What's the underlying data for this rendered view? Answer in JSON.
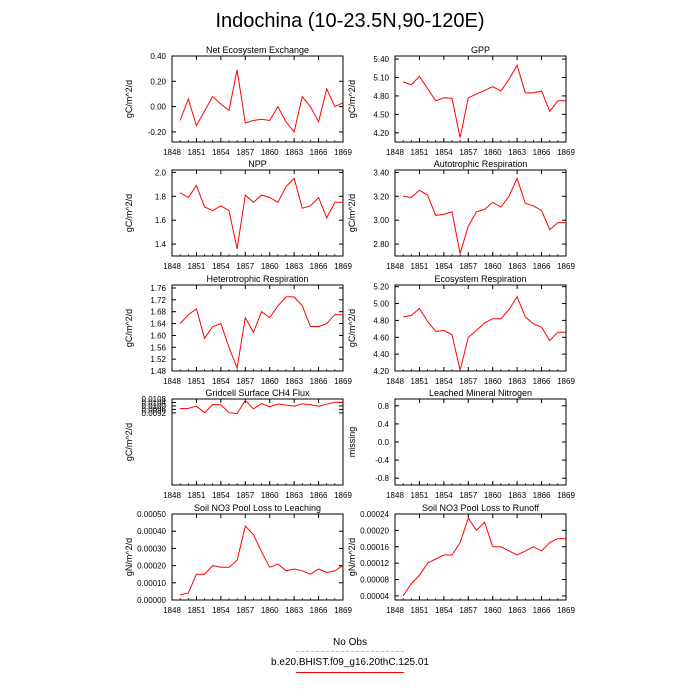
{
  "title": "Indochina (10-23.5N,90-120E)",
  "legend": [
    {
      "label": "No Obs",
      "color": "#b6b6f0",
      "dash": "4,3"
    },
    {
      "label": "b.e20.BHIST.f09_g16.20thC.125.01",
      "color": "#ff0000",
      "dash": ""
    }
  ],
  "x_ticks": [
    "1848",
    "1851",
    "1854",
    "1857",
    "1860",
    "1863",
    "1866",
    "1869"
  ],
  "chart_data": [
    {
      "type": "line",
      "title": "Net Ecosystem Exchange",
      "ylabel": "gC/m^2/d",
      "ylim": [
        -0.28,
        0.4
      ],
      "yticks": [
        "0.40",
        "0.20",
        "0.00",
        "-0.20"
      ],
      "ytick_values": [
        0.4,
        0.2,
        0.0,
        -0.2
      ],
      "xlim": [
        1848,
        1869
      ],
      "x": [
        1849,
        1850,
        1851,
        1853,
        1854,
        1855,
        1856,
        1857,
        1858,
        1859,
        1860,
        1861,
        1862,
        1863,
        1864,
        1865,
        1866,
        1867,
        1868,
        1869
      ],
      "values": [
        -0.11,
        0.06,
        -0.15,
        0.08,
        0.02,
        -0.03,
        0.29,
        -0.13,
        -0.11,
        -0.1,
        -0.11,
        0.0,
        -0.12,
        -0.2,
        0.08,
        0.0,
        -0.12,
        0.14,
        0.0,
        0.03
      ]
    },
    {
      "type": "line",
      "title": "GPP",
      "ylabel": "gC/m^2/d",
      "ylim": [
        4.05,
        5.45
      ],
      "yticks": [
        "5.40",
        "5.10",
        "4.80",
        "4.50",
        "4.20"
      ],
      "ytick_values": [
        5.4,
        5.1,
        4.8,
        4.5,
        4.2
      ],
      "xlim": [
        1848,
        1869
      ],
      "x": [
        1849,
        1850,
        1851,
        1853,
        1854,
        1855,
        1856,
        1857,
        1858,
        1859,
        1860,
        1861,
        1862,
        1863,
        1864,
        1865,
        1866,
        1867,
        1868,
        1869
      ],
      "values": [
        5.03,
        4.98,
        5.12,
        4.72,
        4.77,
        4.76,
        4.12,
        4.77,
        4.83,
        4.89,
        4.95,
        4.88,
        5.07,
        5.3,
        4.85,
        4.85,
        4.88,
        4.55,
        4.72,
        4.72
      ]
    },
    {
      "type": "line",
      "title": "NPP",
      "ylabel": "gC/m^2/d",
      "ylim": [
        1.3,
        2.02
      ],
      "yticks": [
        "2.0",
        "1.8",
        "1.6",
        "1.4"
      ],
      "ytick_values": [
        2.0,
        1.8,
        1.6,
        1.4
      ],
      "xlim": [
        1848,
        1869
      ],
      "x": [
        1849,
        1850,
        1851,
        1852,
        1853,
        1854,
        1855,
        1856,
        1857,
        1858,
        1859,
        1860,
        1861,
        1862,
        1863,
        1864,
        1865,
        1866,
        1867,
        1868,
        1869
      ],
      "values": [
        1.83,
        1.79,
        1.89,
        1.71,
        1.68,
        1.72,
        1.68,
        1.36,
        1.81,
        1.75,
        1.81,
        1.79,
        1.75,
        1.88,
        1.95,
        1.7,
        1.72,
        1.79,
        1.62,
        1.75,
        1.75
      ]
    },
    {
      "type": "line",
      "title": "Autotrophic Respiration",
      "ylabel": "gC/m^2/d",
      "ylim": [
        2.7,
        3.42
      ],
      "yticks": [
        "3.40",
        "3.20",
        "3.00",
        "2.80"
      ],
      "ytick_values": [
        3.4,
        3.2,
        3.0,
        2.8
      ],
      "xlim": [
        1848,
        1869
      ],
      "x": [
        1849,
        1850,
        1851,
        1852,
        1853,
        1854,
        1855,
        1856,
        1857,
        1858,
        1859,
        1860,
        1861,
        1862,
        1863,
        1864,
        1865,
        1866,
        1867,
        1868,
        1869
      ],
      "values": [
        3.2,
        3.19,
        3.25,
        3.21,
        3.04,
        3.05,
        3.07,
        2.72,
        2.95,
        3.07,
        3.09,
        3.15,
        3.11,
        3.2,
        3.35,
        3.14,
        3.12,
        3.08,
        2.92,
        2.98,
        2.98
      ]
    },
    {
      "type": "line",
      "title": "Heterotrophic Respiration",
      "ylabel": "gC/m^2/d",
      "ylim": [
        1.48,
        1.77
      ],
      "yticks": [
        "1.76",
        "1.72",
        "1.68",
        "1.64",
        "1.60",
        "1.56",
        "1.52",
        "1.48"
      ],
      "ytick_values": [
        1.76,
        1.72,
        1.68,
        1.64,
        1.6,
        1.56,
        1.52,
        1.48
      ],
      "xlim": [
        1848,
        1869
      ],
      "x": [
        1849,
        1850,
        1851,
        1852,
        1853,
        1854,
        1855,
        1856,
        1857,
        1858,
        1859,
        1860,
        1861,
        1862,
        1863,
        1864,
        1865,
        1866,
        1867,
        1868,
        1869
      ],
      "values": [
        1.64,
        1.67,
        1.69,
        1.59,
        1.63,
        1.64,
        1.56,
        1.49,
        1.66,
        1.61,
        1.68,
        1.66,
        1.7,
        1.73,
        1.73,
        1.7,
        1.63,
        1.63,
        1.64,
        1.67,
        1.67
      ]
    },
    {
      "type": "line",
      "title": "Ecosystem Respiration",
      "ylabel": "gC/m^2/d",
      "ylim": [
        4.2,
        5.22
      ],
      "yticks": [
        "5.20",
        "5.00",
        "4.80",
        "4.60",
        "4.40",
        "4.20"
      ],
      "ytick_values": [
        5.2,
        5.0,
        4.8,
        4.6,
        4.4,
        4.2
      ],
      "xlim": [
        1848,
        1869
      ],
      "x": [
        1849,
        1850,
        1851,
        1852,
        1853,
        1854,
        1855,
        1856,
        1857,
        1858,
        1859,
        1860,
        1861,
        1862,
        1863,
        1864,
        1865,
        1866,
        1867,
        1868,
        1869
      ],
      "values": [
        4.84,
        4.86,
        4.94,
        4.79,
        4.67,
        4.68,
        4.63,
        4.21,
        4.6,
        4.68,
        4.77,
        4.82,
        4.82,
        4.93,
        5.08,
        4.84,
        4.76,
        4.72,
        4.56,
        4.66,
        4.66
      ]
    },
    {
      "type": "line",
      "title": "Gridcell Surface CH4 Flux",
      "ylabel": "gC/m^2/d",
      "ylim": [
        0.0009,
        0.0108
      ],
      "yticks": [
        "0.0108",
        "0.0104",
        "0.0100",
        "0.0096",
        "0.0092"
      ],
      "ytick_values": [
        0.0108,
        0.0104,
        0.01,
        0.0096,
        0.0092
      ],
      "xlim": [
        1848,
        1869
      ],
      "x": [
        1849,
        1850,
        1851,
        1852,
        1853,
        1854,
        1855,
        1856,
        1857,
        1858,
        1859,
        1860,
        1861,
        1862,
        1863,
        1864,
        1865,
        1866,
        1867,
        1868,
        1869
      ],
      "values": [
        0.0097,
        0.00972,
        0.00997,
        0.00922,
        0.01015,
        0.01013,
        0.00922,
        0.00912,
        0.01064,
        0.00966,
        0.01028,
        0.0099,
        0.01022,
        0.0101,
        0.00998,
        0.01024,
        0.01015,
        0.00997,
        0.0102,
        0.01043,
        0.01043
      ]
    },
    {
      "type": "line",
      "title": "Leached Mineral Nitrogen",
      "ylabel": "missing",
      "ylim": [
        -0.95,
        0.95
      ],
      "yticks": [
        "0.8",
        "0.4",
        "0.0",
        "-0.4",
        "-0.8"
      ],
      "ytick_values": [
        0.8,
        0.4,
        0.0,
        -0.4,
        -0.8
      ],
      "xlim": [
        1848,
        1869
      ],
      "x": [],
      "values": []
    },
    {
      "type": "line",
      "title": "Soil NO3 Pool Loss to Leaching",
      "ylabel": "gN/m^2/d",
      "ylim": [
        0.0,
        0.0005
      ],
      "yticks": [
        "0.00050",
        "0.00040",
        "0.00030",
        "0.00020",
        "0.00010",
        "0.00000"
      ],
      "ytick_values": [
        0.0005,
        0.0004,
        0.0003,
        0.0002,
        0.0001,
        0.0
      ],
      "xlim": [
        1848,
        1869
      ],
      "x": [
        1849,
        1850,
        1851,
        1852,
        1853,
        1854,
        1855,
        1856,
        1857,
        1858,
        1859,
        1860,
        1861,
        1862,
        1863,
        1864,
        1865,
        1866,
        1867,
        1868,
        1869
      ],
      "values": [
        3e-05,
        4e-05,
        0.00015,
        0.00015,
        0.0002,
        0.00019,
        0.00019,
        0.00023,
        0.00043,
        0.00038,
        0.00028,
        0.00019,
        0.00021,
        0.00017,
        0.00018,
        0.00017,
        0.00015,
        0.00018,
        0.00016,
        0.00017,
        0.0002
      ]
    },
    {
      "type": "line",
      "title": "Soil NO3 Pool Loss to Runoff",
      "ylabel": "gN/m^2/d",
      "ylim": [
        3e-05,
        0.00024
      ],
      "yticks": [
        "0.00024",
        "0.00020",
        "0.00016",
        "0.00012",
        "0.00008",
        "0.00004"
      ],
      "ytick_values": [
        0.00024,
        0.0002,
        0.00016,
        0.00012,
        8e-05,
        4e-05
      ],
      "xlim": [
        1848,
        1869
      ],
      "x": [
        1849,
        1850,
        1851,
        1852,
        1853,
        1854,
        1855,
        1856,
        1857,
        1858,
        1859,
        1860,
        1861,
        1862,
        1863,
        1864,
        1865,
        1866,
        1867,
        1868,
        1869
      ],
      "values": [
        4e-05,
        7e-05,
        9e-05,
        0.00012,
        0.00013,
        0.00014,
        0.00014,
        0.00017,
        0.00023,
        0.0002,
        0.00022,
        0.00016,
        0.00016,
        0.00015,
        0.00014,
        0.00015,
        0.00016,
        0.00015,
        0.00017,
        0.00018,
        0.00018
      ]
    }
  ]
}
